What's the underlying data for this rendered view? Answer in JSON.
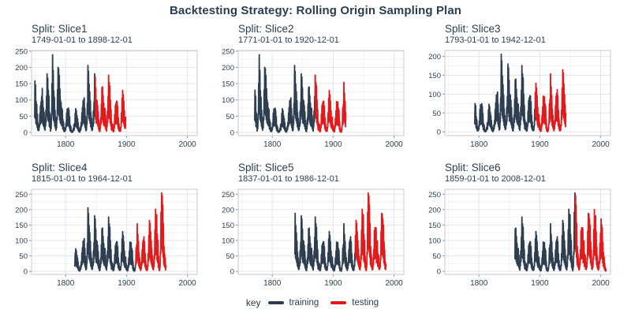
{
  "chart_data": {
    "type": "line",
    "title": "Backtesting Strategy: Rolling Origin Sampling Plan",
    "legend": {
      "label": "key",
      "position": "bottom",
      "series": [
        {
          "name": "training",
          "color": "#2c3e50"
        },
        {
          "name": "testing",
          "color": "#e31a1c"
        }
      ]
    },
    "colors": {
      "title": "#2c3e50",
      "axis_text": "#2c3e50",
      "grid_major": "#e3e6e9",
      "grid_minor": "#f1f3f4",
      "panel_border": "#c6cbd1",
      "tick_mark": "#8a9097",
      "background": "#ffffff"
    },
    "x_domain": [
      1744,
      2016
    ],
    "x_ticks": [
      1800,
      1900,
      2000
    ],
    "x_minor_ticks": [
      1750,
      1850,
      1950
    ],
    "grid": true,
    "years_start": 1749,
    "annual_peak_values": [
      158,
      146,
      95,
      86,
      56,
      28,
      22,
      23,
      58,
      82,
      94,
      110,
      135,
      98,
      75,
      62,
      39,
      26,
      68,
      112,
      180,
      167,
      130,
      112,
      62,
      56,
      17,
      40,
      150,
      239,
      191,
      128,
      108,
      68,
      45,
      24,
      47,
      132,
      200,
      196,
      175,
      134,
      100,
      92,
      75,
      70,
      40,
      32,
      14,
      11,
      15,
      29,
      60,
      72,
      70,
      75,
      68,
      48,
      22,
      18,
      7,
      2,
      5,
      12,
      24,
      27,
      59,
      73,
      67,
      52,
      43,
      30,
      15,
      10,
      5,
      19,
      31,
      60,
      77,
      97,
      100,
      106,
      74,
      49,
      19,
      26,
      90,
      206,
      188,
      148,
      125,
      97,
      61,
      43,
      22,
      29,
      66,
      94,
      180,
      170,
      137,
      100,
      97,
      84,
      64,
      37,
      15,
      11,
      44,
      87,
      138,
      140,
      113,
      90,
      70,
      74,
      52,
      31,
      16,
      66,
      111,
      176,
      154,
      143,
      99,
      70,
      32,
      23,
      25,
      9,
      14,
      55,
      83,
      90,
      96,
      95,
      80,
      44,
      26,
      15,
      14,
      16,
      60,
      105,
      129,
      116,
      96,
      66,
      45,
      46,
      24,
      19,
      7,
      11,
      44,
      66,
      95,
      82,
      93,
      74,
      68,
      33,
      12,
      8,
      4,
      20,
      75,
      86,
      154,
      120,
      96,
      60,
      44,
      26,
      12,
      31,
      70,
      95,
      102,
      112,
      96,
      57,
      35,
      20,
      11,
      17,
      58,
      116,
      165,
      156,
      128,
      99,
      72,
      49,
      28,
      18,
      54,
      134,
      201,
      185,
      183,
      119,
      100,
      49,
      24,
      9,
      63,
      192,
      254,
      245,
      215,
      155,
      80,
      56,
      44,
      18,
      25,
      70,
      132,
      142,
      141,
      140,
      95,
      98,
      57,
      52,
      26,
      22,
      44,
      130,
      188,
      185,
      170,
      150,
      95,
      69,
      30,
      23,
      46,
      136,
      200,
      178,
      180,
      128,
      78,
      46,
      29,
      15,
      34,
      91,
      124,
      170,
      151,
      140,
      93,
      61,
      46,
      25,
      13,
      6
    ],
    "facets": [
      {
        "title": "Split: Slice1",
        "subtitle": "1749-01-01 to 1898-12-01",
        "train_start": 1749,
        "test_start": 1849,
        "end": 1898,
        "y_ticks": [
          0,
          50,
          100,
          150,
          200,
          250
        ],
        "y_max": 252
      },
      {
        "title": "Split: Slice2",
        "subtitle": "1771-01-01 to 1920-12-01",
        "train_start": 1771,
        "test_start": 1871,
        "end": 1920,
        "y_ticks": [
          0,
          50,
          100,
          150,
          200,
          250
        ],
        "y_max": 252
      },
      {
        "title": "Split: Slice3",
        "subtitle": "1793-01-01 to 1942-12-01",
        "train_start": 1793,
        "test_start": 1893,
        "end": 1942,
        "y_ticks": [
          0,
          50,
          100,
          150,
          200
        ],
        "y_max": 216
      },
      {
        "title": "Split: Slice4",
        "subtitle": "1815-01-01 to 1964-12-01",
        "train_start": 1815,
        "test_start": 1915,
        "end": 1964,
        "y_ticks": [
          0,
          50,
          100,
          150,
          200,
          250
        ],
        "y_max": 266
      },
      {
        "title": "Split: Slice5",
        "subtitle": "1837-01-01 to 1986-12-01",
        "train_start": 1837,
        "test_start": 1937,
        "end": 1986,
        "y_ticks": [
          0,
          50,
          100,
          150,
          200,
          250
        ],
        "y_max": 266
      },
      {
        "title": "Split: Slice6",
        "subtitle": "1859-01-01 to 2008-12-01",
        "train_start": 1859,
        "test_start": 1959,
        "end": 2008,
        "y_ticks": [
          0,
          50,
          100,
          150,
          200,
          250
        ],
        "y_max": 266
      }
    ]
  }
}
